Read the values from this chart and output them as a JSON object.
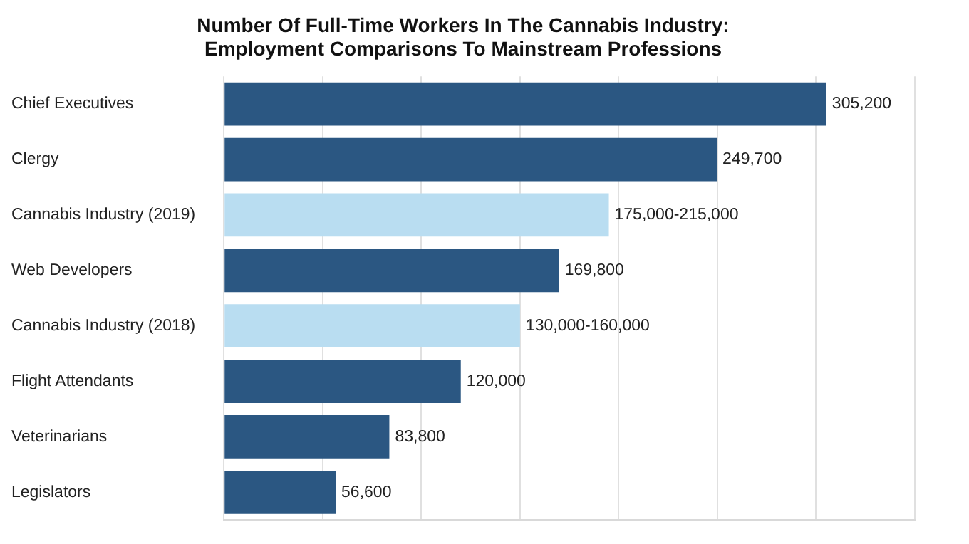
{
  "chart_data": {
    "type": "bar",
    "orientation": "horizontal",
    "title": "Number Of Full-Time Workers In The Cannabis Industry:\nEmployment Comparisons To Mainstream Professions",
    "categories": [
      "Chief Executives",
      "Clergy",
      "Cannabis Industry (2019)",
      "Web Developers",
      "Cannabis Industry (2018)",
      "Flight Attendants",
      "Veterinarians",
      "Legislators"
    ],
    "values": [
      305200,
      249700,
      195000,
      169800,
      150000,
      120000,
      83800,
      56600
    ],
    "colors": [
      "#2b5782",
      "#2b5782",
      "#b9ddf1",
      "#2b5782",
      "#b9ddf1",
      "#2b5782",
      "#2b5782",
      "#2b5782"
    ],
    "value_labels": [
      "305,200",
      "249,700",
      "175,000-215,000",
      "169,800",
      "130,000-160,000",
      "120,000",
      "83,800",
      "56,600"
    ],
    "xlim": [
      0,
      350000
    ],
    "xticks": [
      {
        "value": 0,
        "label": null
      },
      {
        "value": 50000,
        "label": null
      },
      {
        "value": 100000,
        "label": null
      },
      {
        "value": 150000,
        "label": null
      },
      {
        "value": 200000,
        "label": null
      },
      {
        "value": 250000,
        "label": null
      },
      {
        "value": 300000,
        "label": null
      },
      {
        "value": 350000,
        "label": null
      }
    ],
    "grid": "x",
    "legend": false,
    "tick_labels": "y"
  }
}
